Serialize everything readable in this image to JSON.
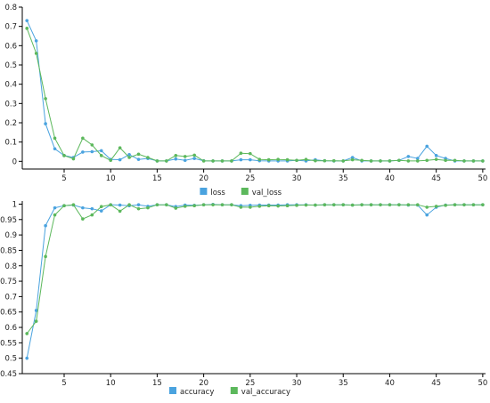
{
  "chart_data": [
    {
      "type": "line",
      "title": "",
      "xlabel": "",
      "ylabel": "",
      "xlim": [
        0.5,
        50.3
      ],
      "ylim": [
        -0.04,
        0.8
      ],
      "x_ticks": [
        "5",
        "10",
        "15",
        "20",
        "25",
        "30",
        "35",
        "40",
        "45",
        "50"
      ],
      "y_ticks": [
        "0",
        "0.1",
        "0.2",
        "0.3",
        "0.4",
        "0.5",
        "0.6",
        "0.7",
        "0.8"
      ],
      "legend": "bottom-center",
      "x": [
        1,
        2,
        3,
        4,
        5,
        6,
        7,
        8,
        9,
        10,
        11,
        12,
        13,
        14,
        15,
        16,
        17,
        18,
        19,
        20,
        21,
        22,
        23,
        24,
        25,
        26,
        27,
        28,
        29,
        30,
        31,
        32,
        33,
        34,
        35,
        36,
        37,
        38,
        39,
        40,
        41,
        42,
        43,
        44,
        45,
        46,
        47,
        48,
        49,
        50
      ],
      "series": [
        {
          "name": "loss",
          "color": "#4aa3df",
          "values": [
            0.73,
            0.625,
            0.195,
            0.065,
            0.03,
            0.02,
            0.048,
            0.05,
            0.055,
            0.01,
            0.008,
            0.035,
            0.01,
            0.015,
            0.002,
            0.002,
            0.012,
            0.005,
            0.015,
            0.003,
            0.002,
            0.002,
            0.002,
            0.008,
            0.008,
            0.003,
            0.002,
            0.002,
            0.002,
            0.005,
            0.002,
            0.008,
            0.003,
            0.002,
            0.002,
            0.02,
            0.002,
            0.002,
            0.002,
            0.002,
            0.005,
            0.025,
            0.015,
            0.078,
            0.03,
            0.015,
            0.002,
            0.002,
            0.002,
            0.002
          ]
        },
        {
          "name": "val_loss",
          "color": "#5cb85c",
          "values": [
            0.69,
            0.56,
            0.325,
            0.12,
            0.03,
            0.013,
            0.12,
            0.085,
            0.03,
            0.005,
            0.07,
            0.02,
            0.037,
            0.02,
            0.002,
            0.002,
            0.03,
            0.025,
            0.032,
            0.002,
            0.002,
            0.002,
            0.002,
            0.042,
            0.04,
            0.01,
            0.008,
            0.01,
            0.008,
            0.005,
            0.01,
            0.003,
            0.003,
            0.003,
            0.002,
            0.008,
            0.005,
            0.002,
            0.002,
            0.002,
            0.005,
            0.002,
            0.002,
            0.005,
            0.01,
            0.005,
            0.005,
            0.002,
            0.002,
            0.002
          ]
        }
      ]
    },
    {
      "type": "line",
      "title": "",
      "xlabel": "",
      "ylabel": "",
      "xlim": [
        0.5,
        50.3
      ],
      "ylim": [
        0.45,
        1.01
      ],
      "x_ticks": [
        "5",
        "10",
        "15",
        "20",
        "25",
        "30",
        "35",
        "40",
        "45",
        "50"
      ],
      "y_ticks": [
        "0.45",
        "0.5",
        "0.55",
        "0.6",
        "0.65",
        "0.7",
        "0.75",
        "0.8",
        "0.85",
        "0.9",
        "0.95",
        "1"
      ],
      "legend": "bottom-center",
      "x": [
        1,
        2,
        3,
        4,
        5,
        6,
        7,
        8,
        9,
        10,
        11,
        12,
        13,
        14,
        15,
        16,
        17,
        18,
        19,
        20,
        21,
        22,
        23,
        24,
        25,
        26,
        27,
        28,
        29,
        30,
        31,
        32,
        33,
        34,
        35,
        36,
        37,
        38,
        39,
        40,
        41,
        42,
        43,
        44,
        45,
        46,
        47,
        48,
        49,
        50
      ],
      "series": [
        {
          "name": "accuracy",
          "color": "#4aa3df",
          "values": [
            0.5,
            0.655,
            0.93,
            0.988,
            0.995,
            0.997,
            0.988,
            0.985,
            0.978,
            0.998,
            0.997,
            0.995,
            0.998,
            0.993,
            0.998,
            0.998,
            0.992,
            0.997,
            0.996,
            0.998,
            0.999,
            0.998,
            0.998,
            0.995,
            0.996,
            0.997,
            0.997,
            0.997,
            0.998,
            0.998,
            0.998,
            0.997,
            0.998,
            0.998,
            0.998,
            0.997,
            0.998,
            0.998,
            0.998,
            0.998,
            0.998,
            0.997,
            0.997,
            0.965,
            0.99,
            0.997,
            0.998,
            0.998,
            0.998,
            0.998
          ]
        },
        {
          "name": "val_accuracy",
          "color": "#5cb85c",
          "values": [
            0.58,
            0.62,
            0.83,
            0.965,
            0.995,
            0.998,
            0.952,
            0.965,
            0.992,
            0.998,
            0.977,
            0.998,
            0.985,
            0.988,
            0.998,
            0.998,
            0.987,
            0.993,
            0.995,
            0.998,
            0.998,
            0.998,
            0.998,
            0.99,
            0.99,
            0.993,
            0.995,
            0.994,
            0.995,
            0.996,
            0.997,
            0.997,
            0.998,
            0.998,
            0.998,
            0.997,
            0.998,
            0.998,
            0.998,
            0.998,
            0.998,
            0.998,
            0.998,
            0.99,
            0.993,
            0.996,
            0.998,
            0.998,
            0.998,
            0.998
          ]
        }
      ]
    }
  ]
}
